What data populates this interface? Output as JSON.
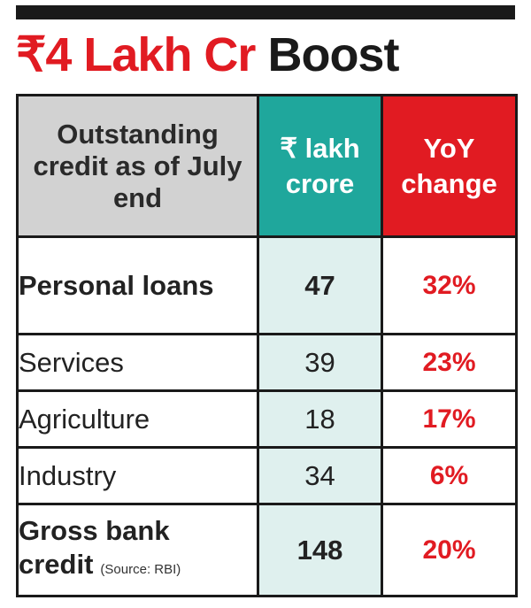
{
  "headline": {
    "highlight": "₹4 Lakh Cr",
    "rest": "Boost"
  },
  "colors": {
    "accent_red": "#e11b22",
    "teal": "#1fa79c",
    "header_grey": "#d2d2d2",
    "value_tint": "#dff0ee"
  },
  "chart_data": {
    "type": "table",
    "title": "₹4 Lakh Cr Boost",
    "columns": [
      "Outstanding credit as of July end",
      "₹ lakh crore",
      "YoY change"
    ],
    "rows": [
      {
        "label": "Personal loans",
        "value": "47",
        "change": "32%",
        "bold": true
      },
      {
        "label": "Services",
        "value": "39",
        "change": "23%",
        "bold": false
      },
      {
        "label": "Agriculture",
        "value": "18",
        "change": "17%",
        "bold": false
      },
      {
        "label": "Industry",
        "value": "34",
        "change": "6%",
        "bold": false
      }
    ],
    "total": {
      "label_line1": "Gross bank",
      "label_line2": "credit",
      "value": "148",
      "change": "20%"
    },
    "source": "(Source: RBI)"
  }
}
